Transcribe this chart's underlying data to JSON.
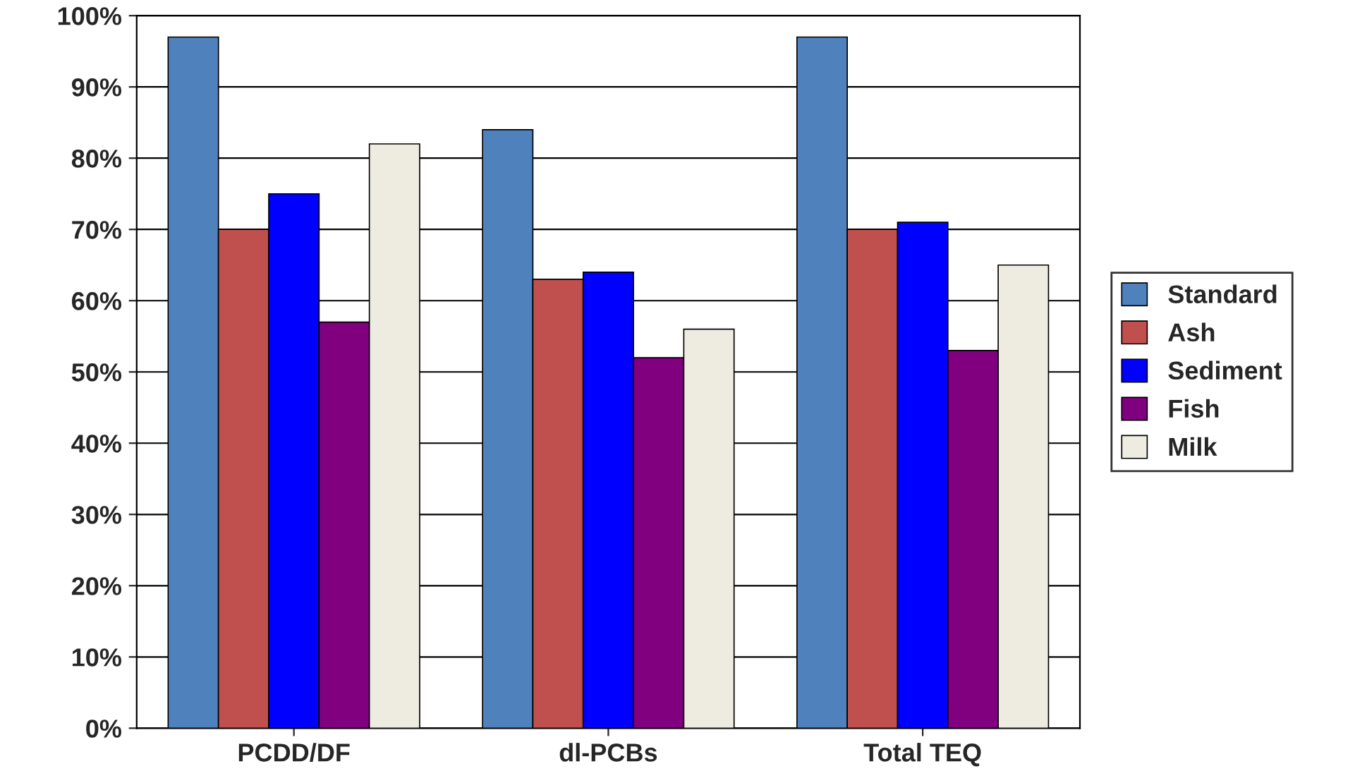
{
  "chart_data": {
    "type": "bar",
    "categories": [
      "PCDD/DF",
      "dl-PCBs",
      "Total TEQ"
    ],
    "series": [
      {
        "name": "Standard",
        "color": "#4f81bd",
        "values": [
          97,
          84,
          97
        ]
      },
      {
        "name": "Ash",
        "color": "#c0504d",
        "values": [
          70,
          63,
          70
        ]
      },
      {
        "name": "Sediment",
        "color": "#0000ff",
        "values": [
          75,
          64,
          71
        ]
      },
      {
        "name": "Fish",
        "color": "#800080",
        "values": [
          57,
          52,
          53
        ]
      },
      {
        "name": "Milk",
        "color": "#eeece1",
        "values": [
          82,
          56,
          65
        ]
      }
    ],
    "ylim": [
      0,
      100
    ],
    "yticks": [
      {
        "value": 0,
        "label": "0%"
      },
      {
        "value": 10,
        "label": "10%"
      },
      {
        "value": 20,
        "label": "20%"
      },
      {
        "value": 30,
        "label": "30%"
      },
      {
        "value": 40,
        "label": "40%"
      },
      {
        "value": 50,
        "label": "50%"
      },
      {
        "value": 60,
        "label": "60%"
      },
      {
        "value": 70,
        "label": "70%"
      },
      {
        "value": 80,
        "label": "80%"
      },
      {
        "value": 90,
        "label": "90%"
      },
      {
        "value": 100,
        "label": "100%"
      }
    ],
    "grid": "y",
    "legend": "right"
  }
}
